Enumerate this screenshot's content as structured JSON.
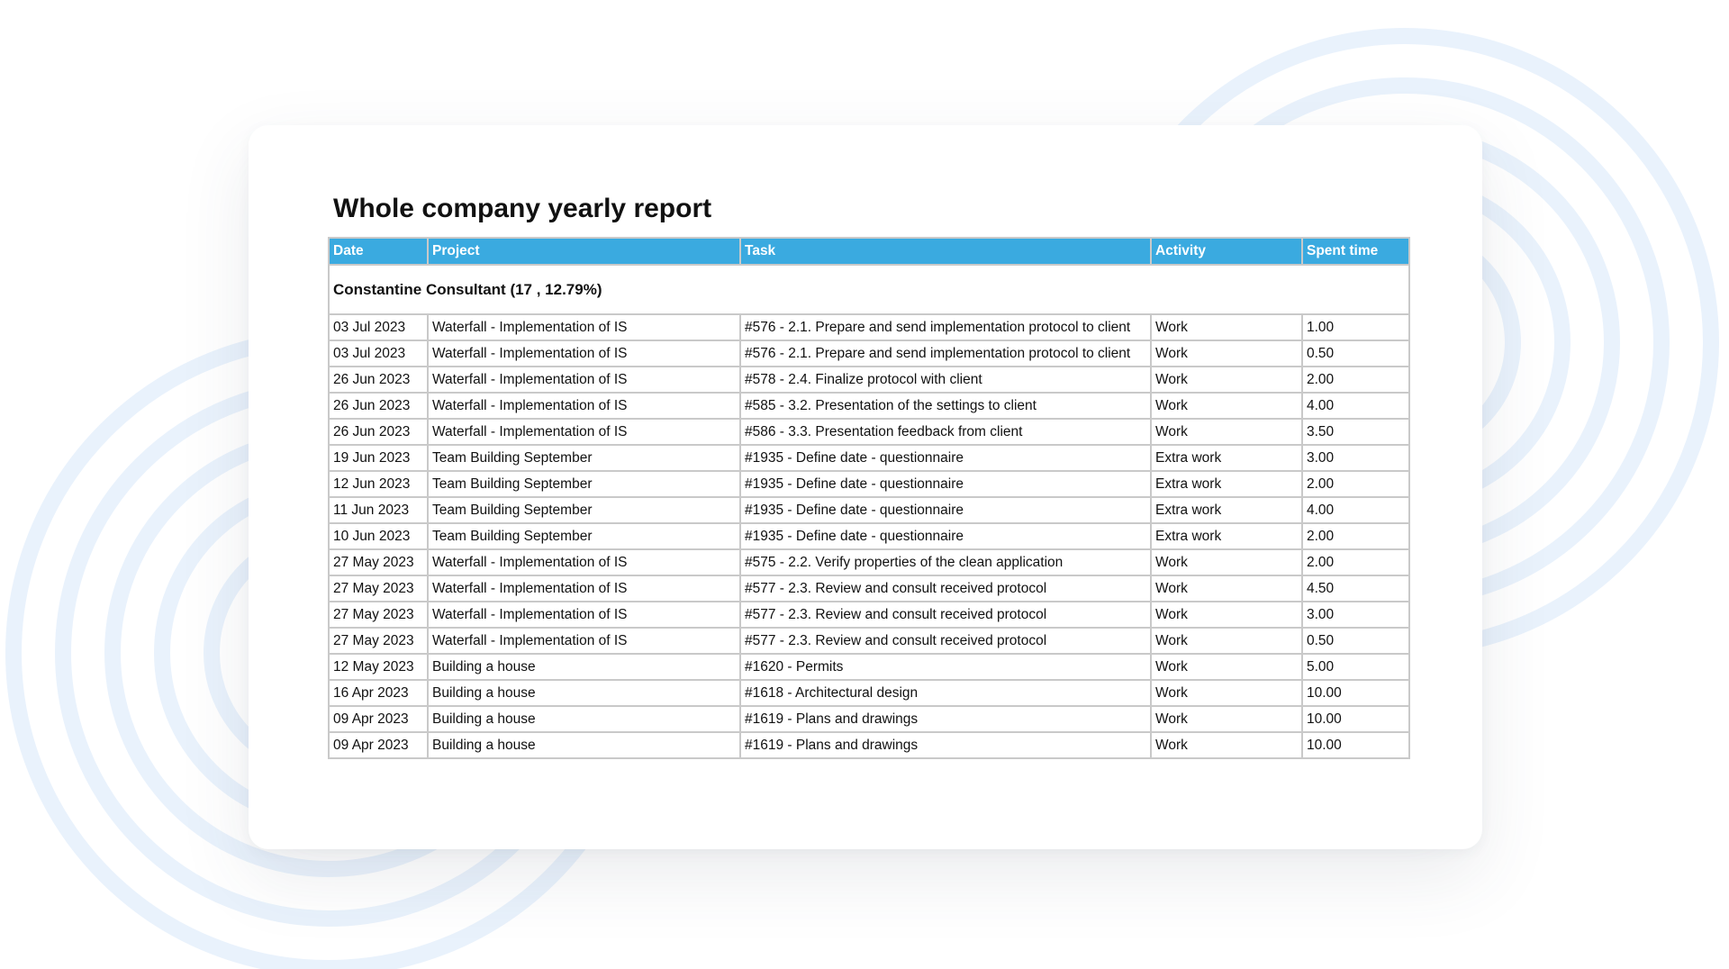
{
  "report": {
    "title": "Whole company yearly report",
    "headers": {
      "date": "Date",
      "project": "Project",
      "task": "Task",
      "activity": "Activity",
      "spent_time": "Spent time"
    },
    "group_label": "Constantine Consultant (17 , 12.79%)",
    "rows": [
      {
        "date": "03 Jul 2023",
        "project": "Waterfall - Implementation of IS",
        "task": "#576 - 2.1. Prepare and send implementation protocol to client",
        "activity": "Work",
        "spent": "1.00"
      },
      {
        "date": "03 Jul 2023",
        "project": "Waterfall - Implementation of IS",
        "task": "#576 - 2.1. Prepare and send implementation protocol to client",
        "activity": "Work",
        "spent": "0.50"
      },
      {
        "date": "26 Jun 2023",
        "project": "Waterfall - Implementation of IS",
        "task": "#578 - 2.4. Finalize protocol with client",
        "activity": "Work",
        "spent": "2.00"
      },
      {
        "date": "26 Jun 2023",
        "project": "Waterfall - Implementation of IS",
        "task": "#585 - 3.2. Presentation of the settings to client",
        "activity": "Work",
        "spent": "4.00"
      },
      {
        "date": "26 Jun 2023",
        "project": "Waterfall - Implementation of IS",
        "task": "#586 - 3.3. Presentation feedback from client",
        "activity": "Work",
        "spent": "3.50"
      },
      {
        "date": "19 Jun 2023",
        "project": "Team Building September",
        "task": "#1935 - Define date - questionnaire",
        "activity": "Extra work",
        "spent": "3.00"
      },
      {
        "date": "12 Jun 2023",
        "project": "Team Building September",
        "task": "#1935 - Define date - questionnaire",
        "activity": "Extra work",
        "spent": "2.00"
      },
      {
        "date": "11 Jun 2023",
        "project": "Team Building September",
        "task": "#1935 - Define date - questionnaire",
        "activity": "Extra work",
        "spent": "4.00"
      },
      {
        "date": "10 Jun 2023",
        "project": "Team Building September",
        "task": "#1935 - Define date - questionnaire",
        "activity": "Extra work",
        "spent": "2.00"
      },
      {
        "date": "27 May 2023",
        "project": "Waterfall - Implementation of IS",
        "task": "#575 - 2.2. Verify properties of the clean application",
        "activity": "Work",
        "spent": "2.00"
      },
      {
        "date": "27 May 2023",
        "project": "Waterfall - Implementation of IS",
        "task": "#577 - 2.3. Review and consult received protocol",
        "activity": "Work",
        "spent": "4.50"
      },
      {
        "date": "27 May 2023",
        "project": "Waterfall - Implementation of IS",
        "task": "#577 - 2.3. Review and consult received protocol",
        "activity": "Work",
        "spent": "3.00"
      },
      {
        "date": "27 May 2023",
        "project": "Waterfall - Implementation of IS",
        "task": "#577 - 2.3. Review and consult received protocol",
        "activity": "Work",
        "spent": "0.50"
      },
      {
        "date": "12 May 2023",
        "project": "Building a house",
        "task": "#1620 - Permits",
        "activity": "Work",
        "spent": "5.00"
      },
      {
        "date": "16 Apr 2023",
        "project": "Building a house",
        "task": "#1618 - Architectural design",
        "activity": "Work",
        "spent": "10.00"
      },
      {
        "date": "09 Apr 2023",
        "project": "Building a house",
        "task": "#1619 - Plans and drawings",
        "activity": "Work",
        "spent": "10.00"
      },
      {
        "date": "09 Apr 2023",
        "project": "Building a house",
        "task": "#1619 - Plans and drawings",
        "activity": "Work",
        "spent": "10.00"
      }
    ]
  },
  "colors": {
    "header_bg": "#3aaae0",
    "header_text": "#ffffff",
    "border": "#c9c9c9",
    "ring": "#e8f1fb"
  }
}
